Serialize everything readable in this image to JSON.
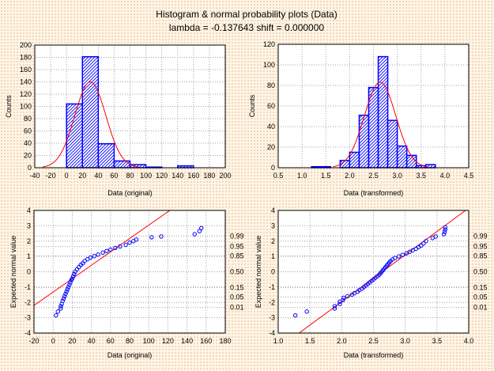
{
  "title": "Histogram & normal probability plots (Data)",
  "subtitle": "lambda = -0.137643 shift = 0.000000",
  "colors": {
    "bar": "#0000ff",
    "fit": "#ff0000",
    "points": "#0000ff",
    "grid": "#a0a0a0"
  },
  "chart_data": [
    {
      "type": "bar",
      "name": "histogram-original",
      "xlabel": "Data (original)",
      "ylabel": "Counts",
      "xlim": [
        -40,
        200
      ],
      "ylim": [
        0,
        200
      ],
      "xticks": [
        "-40",
        "-20",
        "0",
        "20",
        "40",
        "60",
        "80",
        "100",
        "120",
        "140",
        "160",
        "180",
        "200"
      ],
      "yticks": [
        "0",
        "20",
        "40",
        "60",
        "80",
        "100",
        "120",
        "140",
        "160",
        "180",
        "200"
      ],
      "bins": [
        [
          0,
          20,
          104
        ],
        [
          20,
          40,
          181
        ],
        [
          40,
          60,
          39
        ],
        [
          60,
          80,
          11
        ],
        [
          80,
          100,
          5
        ],
        [
          100,
          120,
          1
        ],
        [
          140,
          160,
          3
        ]
      ],
      "fit": {
        "type": "normal",
        "mean": 30,
        "sd": 19.6,
        "n": 344,
        "binwidth": 20,
        "range": [
          -30,
          92
        ]
      }
    },
    {
      "type": "bar",
      "name": "histogram-transformed",
      "xlabel": "Data (transformed)",
      "ylabel": "Counts",
      "xlim": [
        0.5,
        4.5
      ],
      "ylim": [
        0,
        120
      ],
      "xticks": [
        "0.5",
        "1.0",
        "1.5",
        "2.0",
        "2.5",
        "3.0",
        "3.5",
        "4.0",
        "4.5"
      ],
      "yticks": [
        "0",
        "20",
        "40",
        "60",
        "80",
        "100",
        "120"
      ],
      "bins": [
        [
          1.2,
          1.6,
          1
        ],
        [
          1.8,
          2.0,
          7
        ],
        [
          2.0,
          2.2,
          15
        ],
        [
          2.2,
          2.4,
          51
        ],
        [
          2.4,
          2.6,
          78
        ],
        [
          2.6,
          2.8,
          108
        ],
        [
          2.8,
          3.0,
          46
        ],
        [
          3.0,
          3.2,
          21
        ],
        [
          3.2,
          3.4,
          12
        ],
        [
          3.4,
          3.6,
          2
        ],
        [
          3.6,
          3.8,
          3
        ]
      ],
      "fit": {
        "type": "normal",
        "mean": 2.64,
        "sd": 0.33,
        "n": 344,
        "binwidth": 0.2,
        "range": [
          1.65,
          3.65
        ]
      }
    },
    {
      "type": "scatter",
      "name": "normal-probability-original",
      "xlabel": "Data (original)",
      "ylabel": "Expected normal value",
      "xlim": [
        -20,
        180
      ],
      "ylim": [
        -4,
        4
      ],
      "xticks": [
        "-20",
        "0",
        "20",
        "40",
        "60",
        "80",
        "100",
        "120",
        "140",
        "160",
        "180"
      ],
      "yticks": [
        "-4",
        "-3",
        "-2",
        "-1",
        "0",
        "1",
        "2",
        "3",
        "4"
      ],
      "prob_labels": [
        [
          "0.99",
          2.326
        ],
        [
          "0.95",
          1.645
        ],
        [
          "0.85",
          1.036
        ],
        [
          "0.50",
          0
        ],
        [
          "0.15",
          -1.036
        ],
        [
          "0.05",
          -1.645
        ],
        [
          "0.01",
          -2.326
        ]
      ],
      "line": [
        [
          -20,
          -2.2
        ],
        [
          122,
          4
        ]
      ],
      "points": [
        [
          3,
          -2.85
        ],
        [
          5,
          -2.6
        ],
        [
          8,
          -2.4
        ],
        [
          8,
          -2.25
        ],
        [
          9,
          -2.1
        ],
        [
          10,
          -1.9
        ],
        [
          11,
          -1.75
        ],
        [
          12,
          -1.6
        ],
        [
          13,
          -1.45
        ],
        [
          14,
          -1.3
        ],
        [
          15,
          -1.15
        ],
        [
          16,
          -1.0
        ],
        [
          17,
          -0.85
        ],
        [
          18,
          -0.7
        ],
        [
          19,
          -0.55
        ],
        [
          20,
          -0.45
        ],
        [
          21,
          -0.3
        ],
        [
          22,
          -0.15
        ],
        [
          23,
          0
        ],
        [
          25,
          0.15
        ],
        [
          27,
          0.3
        ],
        [
          29,
          0.45
        ],
        [
          31,
          0.55
        ],
        [
          33,
          0.7
        ],
        [
          36,
          0.82
        ],
        [
          39,
          0.92
        ],
        [
          43,
          1.02
        ],
        [
          47,
          1.12
        ],
        [
          52,
          1.25
        ],
        [
          56,
          1.35
        ],
        [
          60,
          1.45
        ],
        [
          65,
          1.55
        ],
        [
          70,
          1.65
        ],
        [
          76,
          1.75
        ],
        [
          80,
          1.9
        ],
        [
          84,
          2.0
        ],
        [
          87,
          2.1
        ],
        [
          103,
          2.25
        ],
        [
          113,
          2.3
        ],
        [
          148,
          2.45
        ],
        [
          153,
          2.65
        ],
        [
          155,
          2.85
        ]
      ]
    },
    {
      "type": "scatter",
      "name": "normal-probability-transformed",
      "xlabel": "Data (transformed)",
      "ylabel": "Expected normal value",
      "xlim": [
        1.0,
        4.0
      ],
      "ylim": [
        -4,
        4
      ],
      "xticks": [
        "1.0",
        "1.5",
        "2.0",
        "2.5",
        "3.0",
        "3.5",
        "4.0"
      ],
      "yticks": [
        "-4",
        "-3",
        "-2",
        "-1",
        "0",
        "1",
        "2",
        "3",
        "4"
      ],
      "prob_labels": [
        [
          "0.99",
          2.326
        ],
        [
          "0.95",
          1.645
        ],
        [
          "0.85",
          1.036
        ],
        [
          "0.50",
          0
        ],
        [
          "0.15",
          -1.036
        ],
        [
          "0.05",
          -1.645
        ],
        [
          "0.01",
          -2.326
        ]
      ],
      "line": [
        [
          1.33,
          -4
        ],
        [
          3.95,
          4
        ]
      ],
      "points": [
        [
          1.27,
          -2.85
        ],
        [
          1.45,
          -2.6
        ],
        [
          1.89,
          -2.4
        ],
        [
          1.89,
          -2.25
        ],
        [
          1.97,
          -2.1
        ],
        [
          1.97,
          -1.95
        ],
        [
          2.02,
          -1.85
        ],
        [
          2.03,
          -1.7
        ],
        [
          2.09,
          -1.6
        ],
        [
          2.16,
          -1.5
        ],
        [
          2.2,
          -1.4
        ],
        [
          2.25,
          -1.3
        ],
        [
          2.28,
          -1.2
        ],
        [
          2.32,
          -1.1
        ],
        [
          2.35,
          -1.0
        ],
        [
          2.38,
          -0.9
        ],
        [
          2.41,
          -0.8
        ],
        [
          2.44,
          -0.7
        ],
        [
          2.47,
          -0.6
        ],
        [
          2.5,
          -0.5
        ],
        [
          2.53,
          -0.4
        ],
        [
          2.56,
          -0.3
        ],
        [
          2.59,
          -0.2
        ],
        [
          2.61,
          -0.1
        ],
        [
          2.63,
          0
        ],
        [
          2.65,
          0.1
        ],
        [
          2.67,
          0.2
        ],
        [
          2.69,
          0.3
        ],
        [
          2.71,
          0.4
        ],
        [
          2.73,
          0.5
        ],
        [
          2.75,
          0.6
        ],
        [
          2.77,
          0.7
        ],
        [
          2.8,
          0.8
        ],
        [
          2.84,
          0.9
        ],
        [
          2.9,
          1.0
        ],
        [
          2.96,
          1.1
        ],
        [
          3.02,
          1.2
        ],
        [
          3.07,
          1.3
        ],
        [
          3.12,
          1.4
        ],
        [
          3.17,
          1.5
        ],
        [
          3.21,
          1.6
        ],
        [
          3.25,
          1.7
        ],
        [
          3.29,
          1.85
        ],
        [
          3.33,
          2.0
        ],
        [
          3.43,
          2.2
        ],
        [
          3.48,
          2.3
        ],
        [
          3.61,
          2.45
        ],
        [
          3.62,
          2.6
        ],
        [
          3.63,
          2.75
        ],
        [
          3.63,
          2.9
        ]
      ]
    }
  ]
}
